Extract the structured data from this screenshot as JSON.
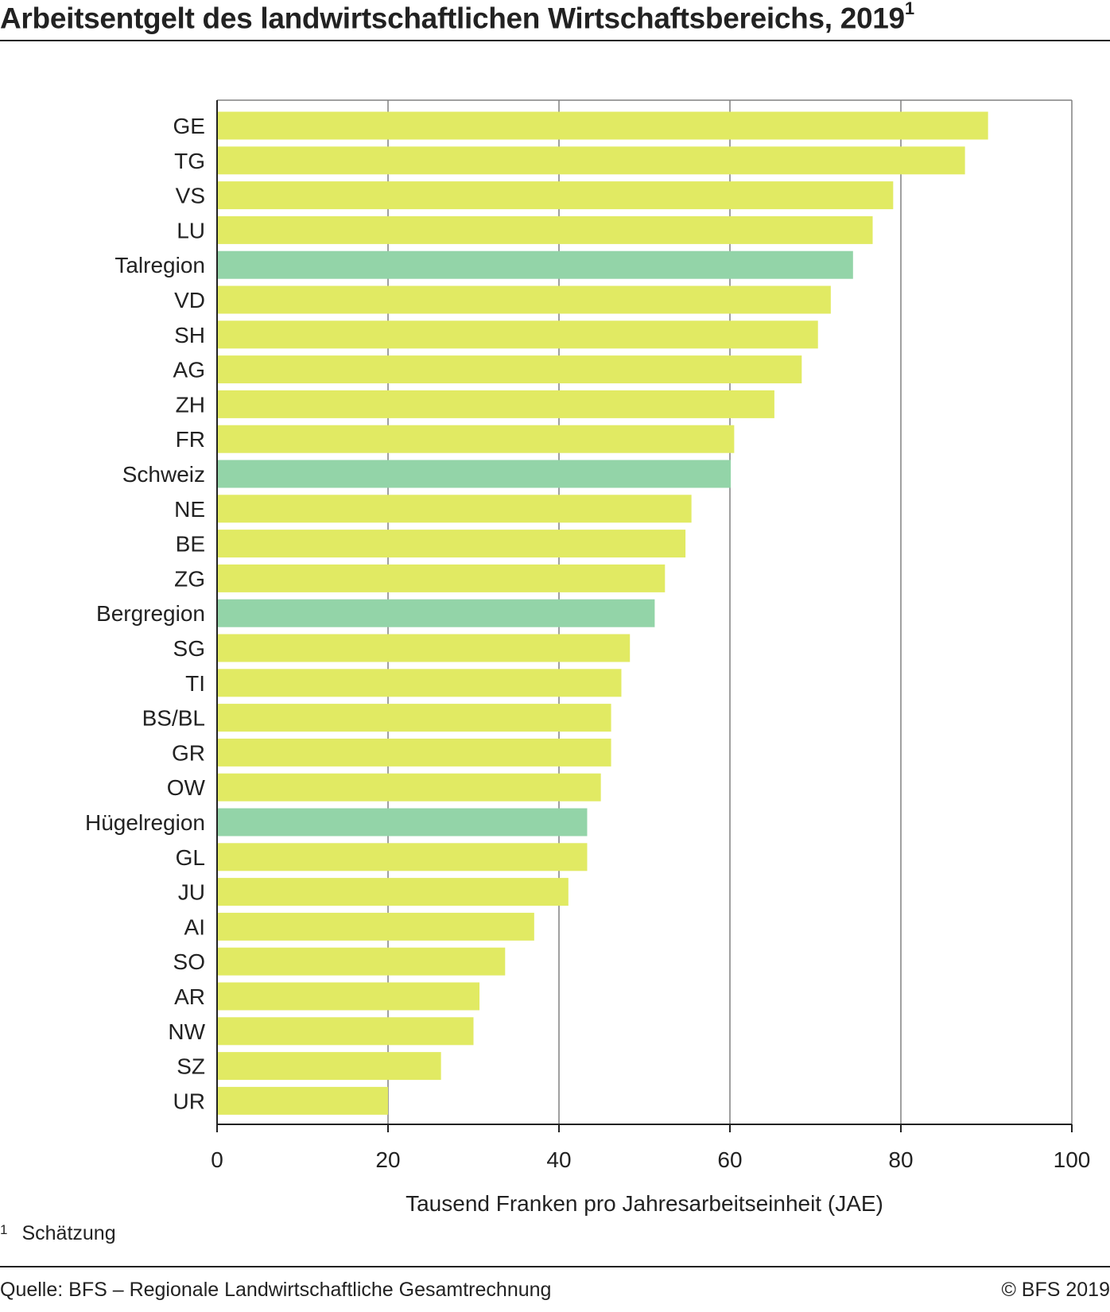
{
  "chart_data": {
    "type": "bar",
    "orientation": "horizontal",
    "title": "Arbeitsentgelt des landwirtschaftlichen Wirtschaftsbereichs, 2019",
    "title_footnote_mark": "1",
    "xlabel": "Tausend Franken pro Jahresarbeitseinheit (JAE)",
    "xlim": [
      0,
      100
    ],
    "xticks": [
      0,
      20,
      40,
      60,
      80,
      100
    ],
    "grid": true,
    "categories": [
      "GE",
      "TG",
      "VS",
      "LU",
      "Talregion",
      "VD",
      "SH",
      "AG",
      "ZH",
      "FR",
      "Schweiz",
      "NE",
      "BE",
      "ZG",
      "Bergregion",
      "SG",
      "TI",
      "BS/BL",
      "GR",
      "OW",
      "Hügelregion",
      "GL",
      "JU",
      "AI",
      "SO",
      "AR",
      "NW",
      "SZ",
      "UR"
    ],
    "values": [
      90.2,
      87.5,
      79.1,
      76.7,
      74.4,
      71.8,
      70.3,
      68.4,
      65.2,
      60.5,
      60.1,
      55.5,
      54.8,
      52.4,
      51.2,
      48.3,
      47.3,
      46.1,
      46.1,
      44.9,
      43.3,
      43.3,
      41.1,
      37.1,
      33.7,
      30.7,
      30.0,
      26.2,
      20.0
    ],
    "highlighted": [
      "Talregion",
      "Schweiz",
      "Bergregion",
      "Hügelregion"
    ],
    "colors": {
      "canton": "#e1ea63",
      "region": "#93d4a8",
      "grid": "#808080",
      "axis": "#222222"
    }
  },
  "footnote": {
    "mark": "1",
    "text": "Schätzung"
  },
  "source": "Quelle: BFS – Regionale Landwirtschaftliche Gesamtrechnung",
  "copyright": "© BFS 2019"
}
